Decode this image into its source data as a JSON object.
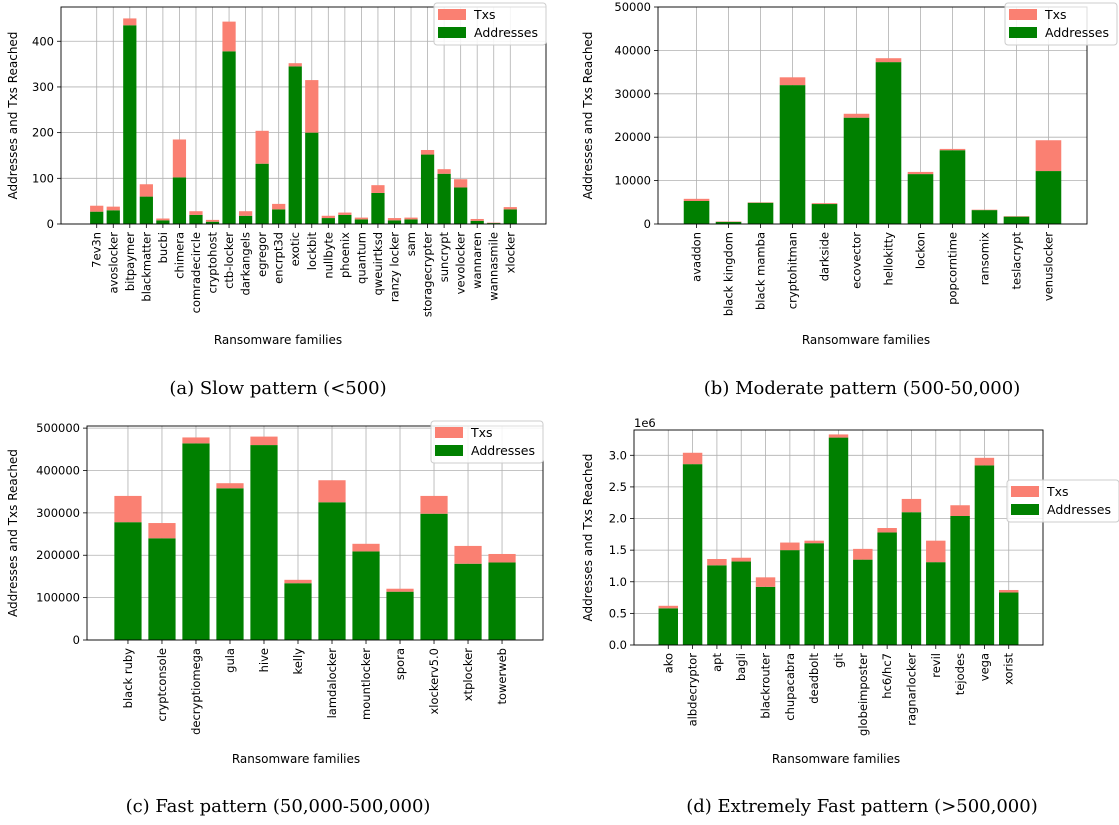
{
  "colors": {
    "txs": "#fa8072",
    "addresses": "#008000",
    "grid": "#b0b0b0"
  },
  "chart_data": [
    {
      "type": "bar",
      "stacked": true,
      "caption": "(a) Slow pattern (<500)",
      "xlabel": "Ransomware families",
      "ylabel": "Addresses and Txs Reached",
      "ylim": [
        0,
        475
      ],
      "yticks": [
        0,
        100,
        200,
        300,
        400
      ],
      "ytick_labels": [
        "0",
        "100",
        "200",
        "300",
        "400"
      ],
      "legend": "top-right",
      "grid": true,
      "categories": [
        "7ev3n",
        "avoslocker",
        "bitpaymer",
        "blackmatter",
        "bucbi",
        "chimera",
        "comradecircle",
        "cryptohost",
        "ctb-locker",
        "darkangels",
        "egregor",
        "encrpt3d",
        "exotic",
        "lockbit",
        "nullbyte",
        "phoenix",
        "quantum",
        "qweuirtksd",
        "ranzy locker",
        "sam",
        "storagecrypter",
        "suncrypt",
        "vevolocker",
        "wannaren",
        "wannasmile",
        "xlocker"
      ],
      "series": [
        {
          "name": "Addresses",
          "values": [
            27,
            30,
            435,
            60,
            8,
            102,
            20,
            5,
            378,
            18,
            132,
            32,
            345,
            200,
            13,
            20,
            10,
            68,
            8,
            10,
            152,
            110,
            80,
            7,
            2,
            32
          ]
        },
        {
          "name": "Txs",
          "values": [
            13,
            8,
            15,
            27,
            4,
            83,
            8,
            4,
            65,
            10,
            72,
            12,
            7,
            115,
            5,
            5,
            4,
            17,
            5,
            4,
            10,
            10,
            18,
            4,
            1,
            5
          ]
        }
      ]
    },
    {
      "type": "bar",
      "stacked": true,
      "caption": "(b) Moderate pattern (500-50,000)",
      "xlabel": "Ransomware families",
      "ylabel": "Addresses and Txs Reached",
      "ylim": [
        0,
        50000
      ],
      "yticks": [
        0,
        10000,
        20000,
        30000,
        40000,
        50000
      ],
      "ytick_labels": [
        "0",
        "10000",
        "20000",
        "30000",
        "40000",
        "50000"
      ],
      "legend": "top-right",
      "grid": true,
      "categories": [
        "avaddon",
        "black kingdom",
        "black mamba",
        "cryptohitman",
        "darkside",
        "ecovector",
        "hellokitty",
        "lockon",
        "popcorntime",
        "ransomix",
        "teslacrypt",
        "venuslocker"
      ],
      "series": [
        {
          "name": "Addresses",
          "values": [
            5300,
            500,
            4900,
            32000,
            4600,
            24500,
            37300,
            11500,
            17000,
            3200,
            1700,
            12200
          ]
        },
        {
          "name": "Txs",
          "values": [
            500,
            100,
            100,
            1800,
            200,
            900,
            900,
            500,
            300,
            100,
            100,
            7100
          ]
        }
      ]
    },
    {
      "type": "bar",
      "stacked": true,
      "caption": "(c) Fast pattern (50,000-500,000)",
      "xlabel": "Ransomware families",
      "ylabel": "Addresses and Txs Reached",
      "ylim": [
        0,
        505000
      ],
      "yticks": [
        0,
        100000,
        200000,
        300000,
        400000,
        500000
      ],
      "ytick_labels": [
        "0",
        "100000",
        "200000",
        "300000",
        "400000",
        "500000"
      ],
      "legend": "top-right",
      "grid": true,
      "categories": [
        "black ruby",
        "cryptconsole",
        "decryptiomega",
        "gula",
        "hive",
        "kelly",
        "lamdalocker",
        "mountlocker",
        "spora",
        "xlockerv5.0",
        "xtplocker",
        "towerweb"
      ],
      "series": [
        {
          "name": "Addresses",
          "values": [
            278000,
            240000,
            464000,
            358000,
            460000,
            134000,
            325000,
            209000,
            114000,
            298000,
            180000,
            183000
          ]
        },
        {
          "name": "Txs",
          "values": [
            62000,
            36000,
            14000,
            12000,
            20000,
            8000,
            52000,
            18000,
            7000,
            42000,
            42000,
            20000
          ]
        }
      ]
    },
    {
      "type": "bar",
      "stacked": true,
      "caption": "(d) Extremely Fast pattern (>500,000)",
      "xlabel": "Ransomware families",
      "ylabel": "Addresses and Txs Reached",
      "y_multiplier": "1e6",
      "ylim": [
        0,
        3.4
      ],
      "yticks": [
        0,
        0.5,
        1.0,
        1.5,
        2.0,
        2.5,
        3.0
      ],
      "ytick_labels": [
        "0.0",
        "0.5",
        "1.0",
        "1.5",
        "2.0",
        "2.5",
        "3.0"
      ],
      "legend": "right",
      "grid": true,
      "categories": [
        "ako",
        "albdecryptor",
        "apt",
        "bagli",
        "blackrouter",
        "chupacabra",
        "deadbolt",
        "git",
        "globeimposter",
        "hc6/hc7",
        "ragnarlocker",
        "revil",
        "tejodes",
        "vega",
        "xorist"
      ],
      "series": [
        {
          "name": "Addresses",
          "values": [
            0.58,
            2.86,
            1.26,
            1.32,
            0.92,
            1.5,
            1.61,
            3.28,
            1.35,
            1.78,
            2.1,
            1.31,
            2.04,
            2.84,
            0.83
          ]
        },
        {
          "name": "Txs",
          "values": [
            0.04,
            0.18,
            0.1,
            0.06,
            0.15,
            0.12,
            0.04,
            0.05,
            0.17,
            0.07,
            0.21,
            0.34,
            0.17,
            0.12,
            0.04
          ]
        }
      ]
    }
  ]
}
